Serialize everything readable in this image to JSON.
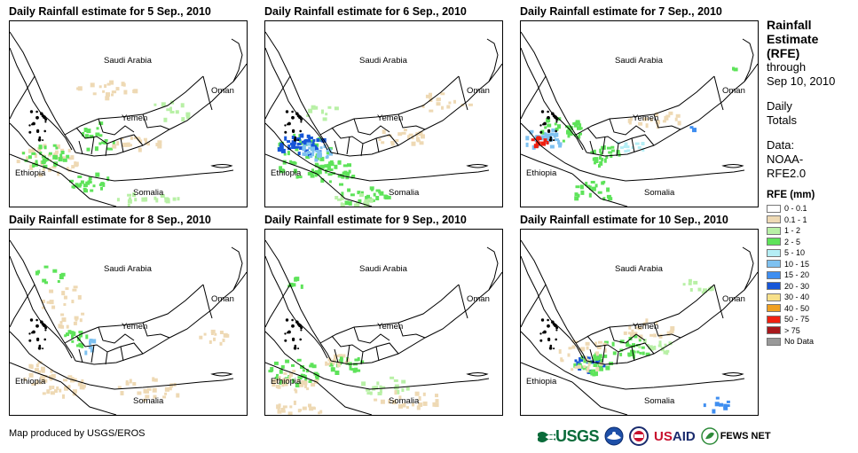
{
  "panels": [
    {
      "title": "Daily Rainfall estimate for 5 Sep., 2010"
    },
    {
      "title": "Daily Rainfall estimate for 6 Sep., 2010"
    },
    {
      "title": "Daily Rainfall estimate for 7 Sep., 2010"
    },
    {
      "title": "Daily Rainfall estimate for 8 Sep., 2010"
    },
    {
      "title": "Daily Rainfall estimate for 9 Sep., 2010"
    },
    {
      "title": "Daily Rainfall estimate for 10 Sep., 2010"
    }
  ],
  "map_labels": {
    "saudi": "Saudi Arabia",
    "oman": "Oman",
    "yemen": "Yemen",
    "ethiopia": "Ethiopia",
    "somalia": "Somalia"
  },
  "legend": {
    "title_line1": "Rainfall",
    "title_line2": "Estimate",
    "title_line3": "(RFE)",
    "through_line1": "through",
    "through_line2": "Sep 10, 2010",
    "daily_line1": "Daily",
    "daily_line2": "Totals",
    "data_line1": "Data:",
    "data_line2": "NOAA-",
    "data_line3": "RFE2.0",
    "rfe_title": "RFE (mm)",
    "classes": [
      {
        "label": "0 - 0.1",
        "color": "#ffffff"
      },
      {
        "label": "0.1 - 1",
        "color": "#eed9b4"
      },
      {
        "label": "1 - 2",
        "color": "#b8f0a6"
      },
      {
        "label": "2 - 5",
        "color": "#5ee35a"
      },
      {
        "label": "5 - 10",
        "color": "#b4eef5"
      },
      {
        "label": "10 - 15",
        "color": "#7ec1f0"
      },
      {
        "label": "15 - 20",
        "color": "#3f8ef0"
      },
      {
        "label": "20 - 30",
        "color": "#1756d8"
      },
      {
        "label": "30 - 40",
        "color": "#f7e08a"
      },
      {
        "label": "40 - 50",
        "color": "#f0a020"
      },
      {
        "label": "50 - 75",
        "color": "#f02010"
      },
      {
        "label": "> 75",
        "color": "#a8181c"
      },
      {
        "label": "No Data",
        "color": "#999999"
      }
    ]
  },
  "credit": "Map produced by USGS/EROS",
  "logos": {
    "usgs": "USGS",
    "usaid_a": "US",
    "usaid_b": "AID",
    "fews": "FEWS NET"
  }
}
